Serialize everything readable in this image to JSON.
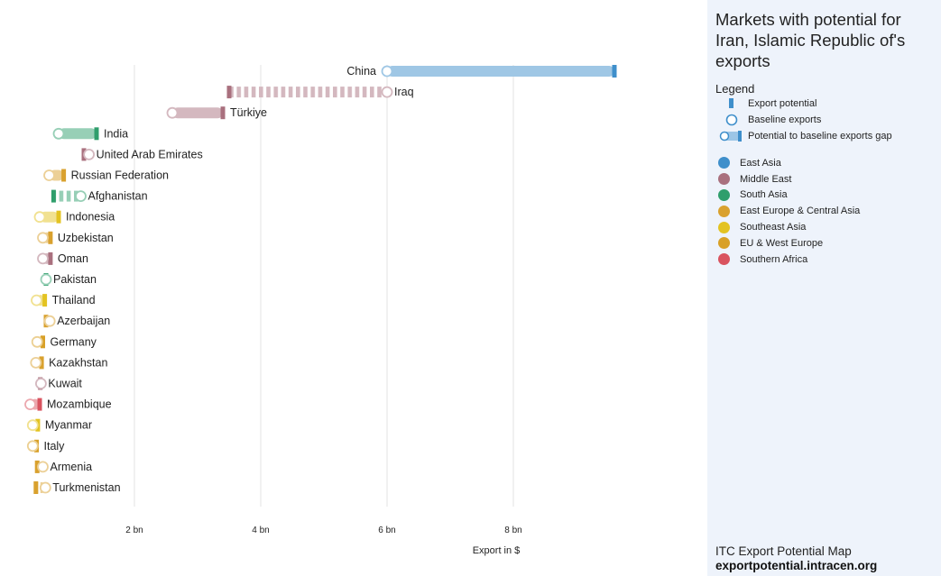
{
  "panel": {
    "title": "Markets with potential for Iran, Islamic Republic of's exports",
    "legend_heading": "Legend",
    "legend_items": [
      {
        "label": "Export potential",
        "icon": "potential-bar"
      },
      {
        "label": "Baseline exports",
        "icon": "baseline-circle"
      },
      {
        "label": "Potential to baseline exports gap",
        "icon": "gap-bar"
      }
    ],
    "regions": [
      {
        "name": "East Asia",
        "color": "#3f8fcb"
      },
      {
        "name": "Middle East",
        "color": "#a9707e"
      },
      {
        "name": "South Asia",
        "color": "#2f9e6c"
      },
      {
        "name": "East Europe & Central Asia",
        "color": "#d9a12e"
      },
      {
        "name": "Southeast Asia",
        "color": "#e3c321"
      },
      {
        "name": "EU & West Europe",
        "color": "#d8a027"
      },
      {
        "name": "Southern Africa",
        "color": "#d9535f"
      }
    ],
    "footer_line1": "ITC Export Potential Map",
    "footer_line2": "exportpotential.intracen.org"
  },
  "chart_data": {
    "type": "dumbbell",
    "xlabel": "Export in $",
    "unit": "bn USD",
    "xlim": [
      0.4,
      9.5
    ],
    "xticks": [
      2,
      4,
      6,
      8
    ],
    "xtick_labels": [
      "2 bn",
      "4 bn",
      "6 bn",
      "8 bn"
    ],
    "grid": true,
    "series": [
      {
        "name": "Baseline exports",
        "key": "baseline"
      },
      {
        "name": "Export potential",
        "key": "potential"
      }
    ],
    "markets": [
      {
        "name": "China",
        "region": "East Asia",
        "baseline": 6.0,
        "potential": 9.6,
        "color": "#3f8fcb",
        "label_side": "left"
      },
      {
        "name": "Iraq",
        "region": "Middle East",
        "baseline": 6.0,
        "potential": 3.5,
        "color": "#a9707e",
        "label_side": "right"
      },
      {
        "name": "Türkiye",
        "region": "Middle East",
        "baseline": 2.6,
        "potential": 3.4,
        "color": "#a9707e",
        "label_side": "right"
      },
      {
        "name": "India",
        "region": "South Asia",
        "baseline": 0.8,
        "potential": 1.4,
        "color": "#2f9e6c",
        "label_side": "right"
      },
      {
        "name": "United Arab Emirates",
        "region": "Middle East",
        "baseline": 1.28,
        "potential": 1.2,
        "color": "#a9707e",
        "label_side": "right"
      },
      {
        "name": "Russian Federation",
        "region": "East Europe & Central Asia",
        "baseline": 0.65,
        "potential": 0.88,
        "color": "#d9a12e",
        "label_side": "right"
      },
      {
        "name": "Afghanistan",
        "region": "South Asia",
        "baseline": 1.15,
        "potential": 0.72,
        "color": "#2f9e6c",
        "label_side": "right"
      },
      {
        "name": "Indonesia",
        "region": "Southeast Asia",
        "baseline": 0.5,
        "potential": 0.8,
        "color": "#e3c321",
        "label_side": "right"
      },
      {
        "name": "Uzbekistan",
        "region": "East Europe & Central Asia",
        "baseline": 0.55,
        "potential": 0.67,
        "color": "#d9a12e",
        "label_side": "right"
      },
      {
        "name": "Oman",
        "region": "Middle East",
        "baseline": 0.55,
        "potential": 0.67,
        "color": "#a9707e",
        "label_side": "right"
      },
      {
        "name": "Pakistan",
        "region": "South Asia",
        "baseline": 0.6,
        "potential": 0.6,
        "color": "#2f9e6c",
        "label_side": "right"
      },
      {
        "name": "Thailand",
        "region": "Southeast Asia",
        "baseline": 0.45,
        "potential": 0.58,
        "color": "#e3c321",
        "label_side": "right"
      },
      {
        "name": "Azerbaijan",
        "region": "East Europe & Central Asia",
        "baseline": 0.66,
        "potential": 0.6,
        "color": "#d9a12e",
        "label_side": "right"
      },
      {
        "name": "Germany",
        "region": "EU & West Europe",
        "baseline": 0.46,
        "potential": 0.55,
        "color": "#d8a027",
        "label_side": "right"
      },
      {
        "name": "Kazakhstan",
        "region": "East Europe & Central Asia",
        "baseline": 0.44,
        "potential": 0.53,
        "color": "#d9a12e",
        "label_side": "right"
      },
      {
        "name": "Kuwait",
        "region": "Middle East",
        "baseline": 0.52,
        "potential": 0.51,
        "color": "#a9707e",
        "label_side": "right"
      },
      {
        "name": "Mozambique",
        "region": "Southern Africa",
        "baseline": 0.35,
        "potential": 0.5,
        "color": "#d9535f",
        "label_side": "right"
      },
      {
        "name": "Myanmar",
        "region": "Southeast Asia",
        "baseline": 0.39,
        "potential": 0.47,
        "color": "#e3c321",
        "label_side": "right"
      },
      {
        "name": "Italy",
        "region": "EU & West Europe",
        "baseline": 0.39,
        "potential": 0.45,
        "color": "#d8a027",
        "label_side": "right"
      },
      {
        "name": "Armenia",
        "region": "East Europe & Central Asia",
        "baseline": 0.55,
        "potential": 0.46,
        "color": "#d9a12e",
        "label_side": "right"
      },
      {
        "name": "Turkmenistan",
        "region": "East Europe & Central Asia",
        "baseline": 0.59,
        "potential": 0.44,
        "color": "#d9a12e",
        "label_side": "right"
      }
    ]
  }
}
